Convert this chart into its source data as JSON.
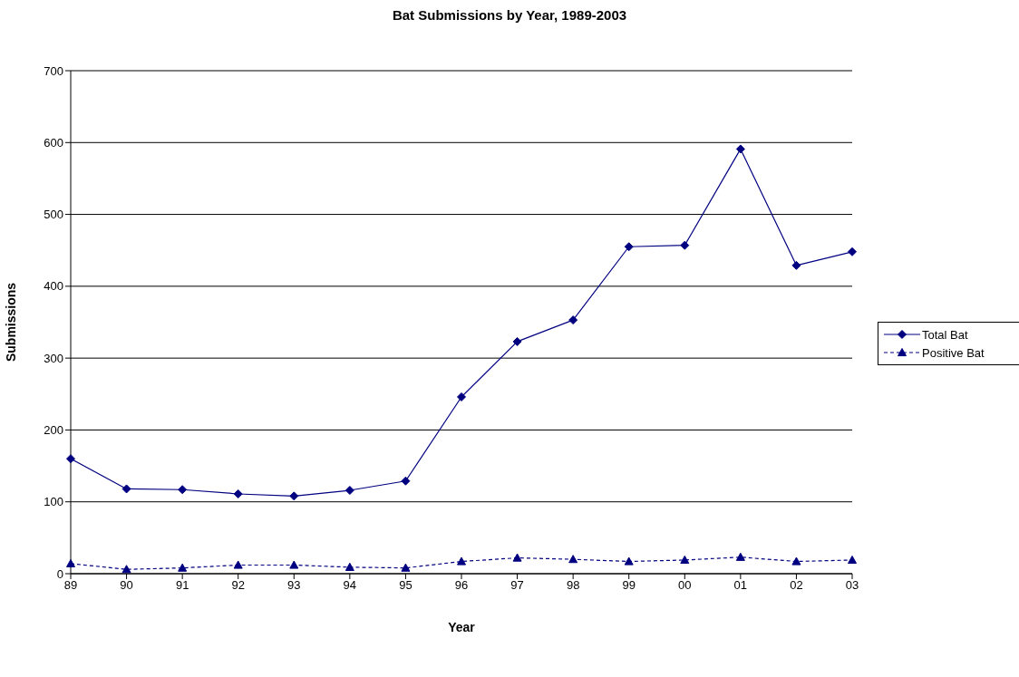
{
  "chart_data": {
    "type": "line",
    "title": "Bat Submissions by Year, 1989-2003",
    "xlabel": "Year",
    "ylabel": "Submissions",
    "categories": [
      "89",
      "90",
      "91",
      "92",
      "93",
      "94",
      "95",
      "96",
      "97",
      "98",
      "99",
      "00",
      "01",
      "02",
      "03"
    ],
    "series": [
      {
        "name": "Total Bat",
        "color": "#000080",
        "marker": "diamond",
        "line_style": "solid",
        "values": [
          160,
          118,
          117,
          111,
          108,
          116,
          129,
          246,
          323,
          353,
          455,
          457,
          591,
          429,
          448
        ]
      },
      {
        "name": "Positive Bat",
        "color": "#000080",
        "marker": "triangle",
        "line_style": "dashed",
        "values": [
          14,
          6,
          8,
          12,
          12,
          9,
          8,
          17,
          22,
          20,
          17,
          19,
          23,
          17,
          19
        ]
      }
    ],
    "ylim": [
      0,
      700
    ],
    "yticks": [
      0,
      100,
      200,
      300,
      400,
      500,
      600,
      700
    ],
    "grid": "y",
    "legend": "right"
  }
}
